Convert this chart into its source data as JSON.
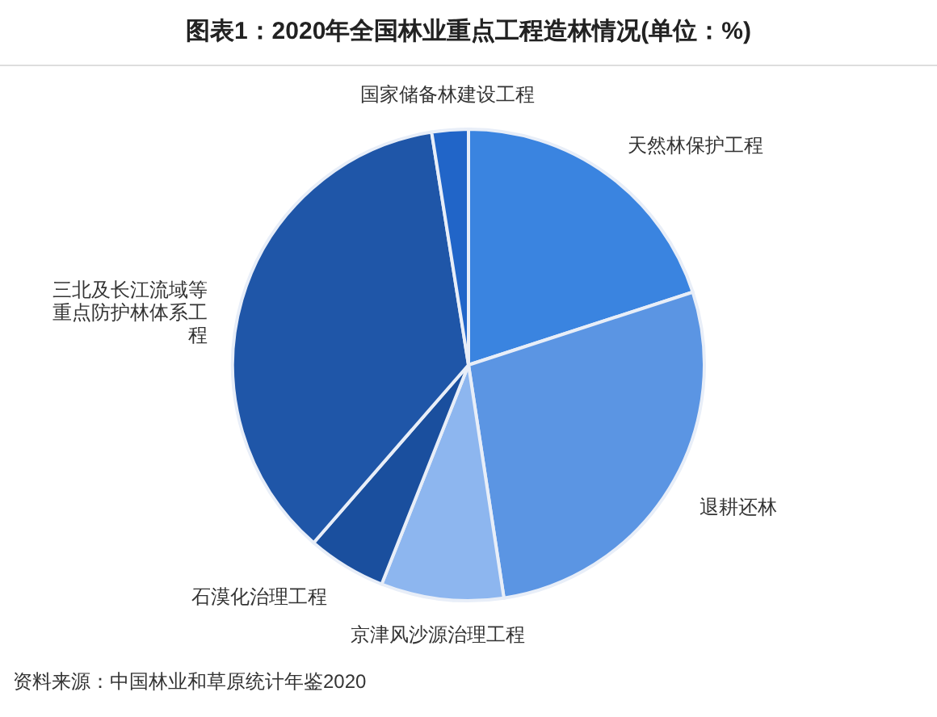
{
  "chart_data": {
    "type": "pie",
    "title": "图表1：2020年全国林业重点工程造林情况(单位：%)",
    "categories": [
      "天然林保护工程",
      "退耕还林",
      "京津风沙源治理工程",
      "石漠化治理工程",
      "三北及长江流域等重点防护林体系工程",
      "国家储备林建设工程"
    ],
    "values": [
      20,
      27.6,
      8.4,
      5.4,
      36.1,
      2.5
    ],
    "colors": [
      "#3a84e0",
      "#5b95e3",
      "#8db6ef",
      "#1a4f9e",
      "#1f56a8",
      "#2165c8"
    ],
    "annotations": [
      "资料来源：中国林业和草原统计年鉴2020"
    ]
  }
}
